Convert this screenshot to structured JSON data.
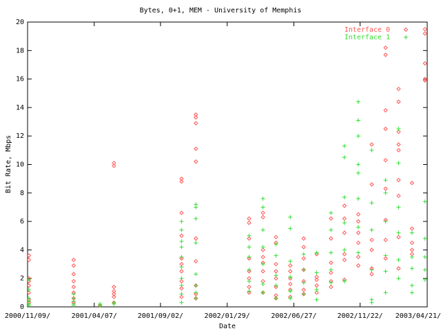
{
  "chart_data": {
    "type": "scatter",
    "title": "Bytes, 0+1, MEM - University of Memphis",
    "x_label": "Date",
    "y_label": "Bit Rate, Mbps",
    "xlim": [
      "2000/11/09",
      "2003/04/21"
    ],
    "xticks": [
      {
        "value": "2000/11/09",
        "label": "2000/11/09/"
      },
      {
        "value": "2001/04/07",
        "label": "2001/04/07/"
      },
      {
        "value": "2001/09/02",
        "label": "2001/09/02/"
      },
      {
        "value": "2002/01/29",
        "label": "2002/01/29/"
      },
      {
        "value": "2002/06/27",
        "label": "2002/06/27/"
      },
      {
        "value": "2002/11/22",
        "label": "2002/11/22/"
      },
      {
        "value": "2003/04/21",
        "label": "2003/04/21/"
      }
    ],
    "ylim": [
      0,
      20
    ],
    "yticks": [
      0,
      2,
      4,
      6,
      8,
      10,
      12,
      14,
      16,
      18,
      20
    ],
    "grid": false,
    "legend": "top right",
    "series": [
      {
        "name": "Interface 0",
        "color": "#ff5555",
        "marker": "diamond",
        "x": [
          "2000/11/12",
          "2000/11/12",
          "2000/11/12",
          "2000/11/12",
          "2000/11/12",
          "2000/11/12",
          "2000/11/12",
          "2000/11/12",
          "2001/02/20",
          "2001/02/20",
          "2001/02/20",
          "2001/02/20",
          "2001/02/20",
          "2001/02/20",
          "2001/02/20",
          "2001/02/20",
          "2001/04/20",
          "2001/05/21",
          "2001/05/21",
          "2001/05/21",
          "2001/05/21",
          "2001/05/21",
          "2001/05/21",
          "2001/05/21",
          "2001/10/19",
          "2001/10/19",
          "2001/10/19",
          "2001/10/19",
          "2001/10/19",
          "2001/10/19",
          "2001/10/19",
          "2001/10/19",
          "2001/10/19",
          "2001/10/19",
          "2001/11/20",
          "2001/11/20",
          "2001/11/20",
          "2001/11/20",
          "2001/11/20",
          "2001/11/20",
          "2001/11/20",
          "2001/11/20",
          "2001/11/20",
          "2001/11/20",
          "2002/03/19",
          "2002/03/19",
          "2002/03/19",
          "2002/03/19",
          "2002/03/19",
          "2002/03/19",
          "2002/03/19",
          "2002/03/19",
          "2002/04/19",
          "2002/04/19",
          "2002/04/19",
          "2002/04/19",
          "2002/04/19",
          "2002/04/19",
          "2002/04/19",
          "2002/04/19",
          "2002/05/18",
          "2002/05/18",
          "2002/05/18",
          "2002/05/18",
          "2002/05/18",
          "2002/05/18",
          "2002/05/18",
          "2002/05/18",
          "2002/06/19",
          "2002/06/19",
          "2002/06/19",
          "2002/06/19",
          "2002/06/19",
          "2002/06/19",
          "2002/07/19",
          "2002/07/19",
          "2002/07/19",
          "2002/07/19",
          "2002/07/19",
          "2002/07/19",
          "2002/07/19",
          "2002/08/17",
          "2002/08/17",
          "2002/08/17",
          "2002/08/17",
          "2002/08/17",
          "2002/09/18",
          "2002/09/18",
          "2002/09/18",
          "2002/09/18",
          "2002/09/18",
          "2002/09/18",
          "2002/10/18",
          "2002/10/18",
          "2002/10/18",
          "2002/10/18",
          "2002/10/18",
          "2002/10/18",
          "2002/11/18",
          "2002/11/18",
          "2002/11/18",
          "2002/11/18",
          "2002/11/18",
          "2002/11/18",
          "2002/12/18",
          "2002/12/18",
          "2002/12/18",
          "2002/12/18",
          "2002/12/18",
          "2002/12/18",
          "2003/01/18",
          "2003/01/18",
          "2003/01/18",
          "2003/01/18",
          "2003/01/18",
          "2003/01/18",
          "2003/01/18",
          "2003/01/18",
          "2003/01/18",
          "2003/02/16",
          "2003/02/16",
          "2003/02/16",
          "2003/02/16",
          "2003/02/16",
          "2003/02/16",
          "2003/02/16",
          "2003/02/16",
          "2003/02/16",
          "2003/03/18",
          "2003/03/18",
          "2003/03/18",
          "2003/03/18",
          "2003/03/18",
          "2003/04/16",
          "2003/04/16",
          "2003/04/16",
          "2003/04/16",
          "2003/04/16"
        ],
        "values": [
          3.6,
          3.3,
          2.0,
          1.8,
          1.5,
          1.0,
          0.5,
          0.3,
          3.3,
          2.9,
          2.3,
          1.8,
          1.4,
          1.0,
          0.6,
          0.3,
          0.1,
          10.1,
          9.9,
          1.4,
          1.1,
          0.9,
          0.7,
          0.3,
          9.0,
          8.8,
          6.6,
          5.0,
          3.4,
          3.0,
          2.5,
          1.8,
          1.3,
          0.7,
          13.5,
          13.3,
          12.9,
          11.1,
          10.2,
          4.8,
          3.2,
          1.5,
          0.9,
          0.6,
          6.2,
          5.9,
          4.8,
          3.4,
          2.5,
          2.0,
          1.4,
          1.0,
          6.6,
          6.3,
          4.0,
          3.5,
          3.1,
          2.5,
          1.8,
          1.0,
          4.9,
          4.5,
          3.0,
          2.5,
          2.0,
          1.4,
          0.8,
          0.6,
          2.9,
          2.5,
          2.0,
          1.6,
          1.2,
          0.7,
          4.8,
          4.2,
          3.4,
          2.6,
          1.8,
          1.2,
          0.9,
          3.7,
          2.1,
          1.9,
          1.5,
          1.0,
          6.2,
          4.8,
          3.1,
          2.4,
          1.8,
          1.4,
          7.1,
          6.2,
          5.2,
          3.7,
          3.3,
          1.9,
          6.5,
          6.0,
          5.2,
          4.5,
          3.5,
          2.9,
          11.4,
          8.6,
          4.7,
          4.0,
          2.7,
          2.3,
          18.2,
          17.7,
          13.8,
          12.5,
          10.3,
          8.3,
          6.1,
          4.7,
          3.4,
          15.3,
          14.4,
          12.3,
          11.4,
          11.0,
          8.9,
          7.8,
          4.9,
          2.7,
          8.7,
          5.5,
          4.5,
          4.0,
          3.7,
          19.5,
          19.2,
          17.1,
          16.0,
          15.9
        ]
      },
      {
        "name": "Interface 1",
        "color": "#33dd33",
        "marker": "plus",
        "x": [
          "2000/11/12",
          "2000/11/12",
          "2000/11/12",
          "2000/11/12",
          "2000/11/12",
          "2000/11/12",
          "2001/02/20",
          "2001/02/20",
          "2001/02/20",
          "2001/02/20",
          "2001/02/20",
          "2001/04/20",
          "2001/04/20",
          "2001/05/21",
          "2001/05/21",
          "2001/10/19",
          "2001/10/19",
          "2001/10/19",
          "2001/10/19",
          "2001/10/19",
          "2001/10/19",
          "2001/10/19",
          "2001/10/19",
          "2001/10/19",
          "2001/10/19",
          "2001/11/20",
          "2001/11/20",
          "2001/11/20",
          "2001/11/20",
          "2001/11/20",
          "2001/11/20",
          "2001/11/20",
          "2001/11/20",
          "2002/03/19",
          "2002/03/19",
          "2002/03/19",
          "2002/03/19",
          "2002/03/19",
          "2002/03/19",
          "2002/04/19",
          "2002/04/19",
          "2002/04/19",
          "2002/04/19",
          "2002/04/19",
          "2002/04/19",
          "2002/04/19",
          "2002/05/18",
          "2002/05/18",
          "2002/05/18",
          "2002/05/18",
          "2002/05/18",
          "2002/06/19",
          "2002/06/19",
          "2002/06/19",
          "2002/06/19",
          "2002/06/19",
          "2002/06/19",
          "2002/07/19",
          "2002/07/19",
          "2002/07/19",
          "2002/07/19",
          "2002/08/17",
          "2002/08/17",
          "2002/08/17",
          "2002/08/17",
          "2002/09/18",
          "2002/09/18",
          "2002/09/18",
          "2002/09/18",
          "2002/09/18",
          "2002/10/18",
          "2002/10/18",
          "2002/10/18",
          "2002/10/18",
          "2002/10/18",
          "2002/10/18",
          "2002/11/18",
          "2002/11/18",
          "2002/11/18",
          "2002/11/18",
          "2002/11/18",
          "2002/11/18",
          "2002/11/18",
          "2002/11/18",
          "2002/12/18",
          "2002/12/18",
          "2002/12/18",
          "2002/12/18",
          "2002/12/18",
          "2002/12/18",
          "2003/01/18",
          "2003/01/18",
          "2003/01/18",
          "2003/01/18",
          "2003/01/18",
          "2003/01/18",
          "2003/02/16",
          "2003/02/16",
          "2003/02/16",
          "2003/02/16",
          "2003/02/16",
          "2003/02/16",
          "2003/03/18",
          "2003/03/18",
          "2003/03/18",
          "2003/03/18",
          "2003/03/18",
          "2003/04/16",
          "2003/04/16",
          "2003/04/16",
          "2003/04/16",
          "2003/04/16"
        ],
        "values": [
          1.9,
          1.2,
          0.6,
          0.4,
          0.2,
          0.1,
          0.9,
          0.6,
          0.4,
          0.2,
          0.1,
          0.2,
          0.1,
          0.3,
          0.2,
          6.0,
          5.4,
          4.6,
          4.2,
          3.5,
          2.8,
          2.0,
          1.5,
          0.9,
          0.3,
          7.2,
          7.0,
          6.2,
          4.5,
          2.3,
          1.5,
          1.0,
          0.6,
          5.0,
          4.2,
          3.5,
          2.6,
          1.8,
          1.1,
          7.6,
          7.0,
          5.4,
          4.2,
          3.0,
          1.6,
          1.0,
          4.4,
          3.6,
          2.2,
          1.5,
          0.6,
          6.3,
          5.5,
          3.2,
          2.1,
          1.1,
          0.6,
          3.7,
          2.6,
          1.7,
          0.9,
          3.8,
          2.4,
          1.2,
          0.5,
          6.6,
          5.4,
          3.8,
          2.6,
          1.7,
          11.3,
          10.5,
          7.7,
          5.9,
          4.0,
          1.8,
          14.4,
          13.1,
          12.0,
          10.0,
          9.4,
          7.6,
          5.6,
          3.8,
          11.0,
          7.3,
          5.4,
          2.6,
          0.5,
          0.3,
          8.9,
          8.0,
          6.0,
          3.6,
          2.5,
          1.0,
          12.5,
          10.1,
          7.0,
          5.2,
          3.3,
          2.0,
          5.2,
          3.5,
          2.7,
          1.5,
          1.0,
          7.4,
          4.8,
          3.5,
          2.6,
          1.9
        ]
      }
    ]
  }
}
